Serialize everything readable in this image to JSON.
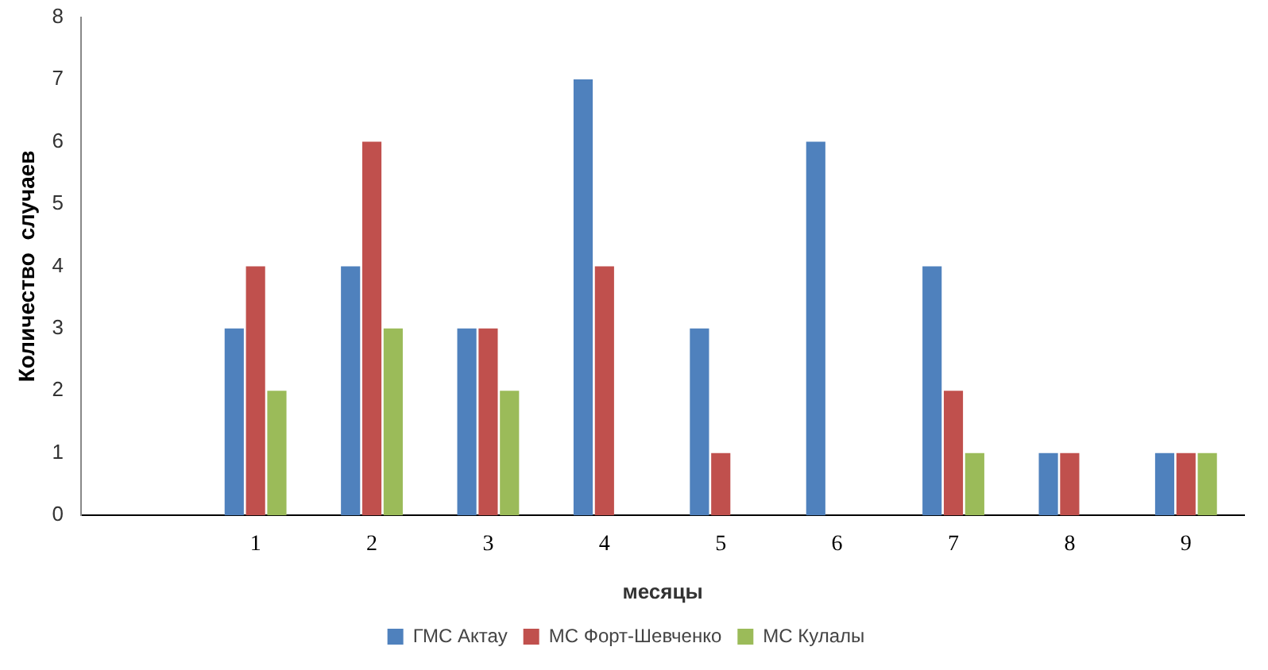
{
  "chart_data": {
    "type": "bar",
    "xlabel": "месяцы",
    "ylabel": "Количество  случаев",
    "categories": [
      null,
      "1",
      "2",
      "3",
      "4",
      "5",
      "6",
      "7",
      "8",
      "9"
    ],
    "series": [
      {
        "name": "ГМС Актау",
        "color": "#4f81bd",
        "values": [
          null,
          3,
          4,
          3,
          7,
          3,
          6,
          4,
          1,
          1
        ]
      },
      {
        "name": "МС Форт-Шевченко",
        "color": "#c0504d",
        "values": [
          null,
          4,
          6,
          3,
          4,
          1,
          0,
          2,
          1,
          1
        ]
      },
      {
        "name": "МС Кулалы",
        "color": "#9bbb59",
        "values": [
          null,
          2,
          3,
          2,
          0,
          0,
          0,
          1,
          0,
          1
        ]
      }
    ],
    "ylim": [
      0,
      8
    ],
    "yticks": [
      0,
      1,
      2,
      3,
      4,
      5,
      6,
      7,
      8
    ],
    "grid": false,
    "legend": "bottom"
  }
}
